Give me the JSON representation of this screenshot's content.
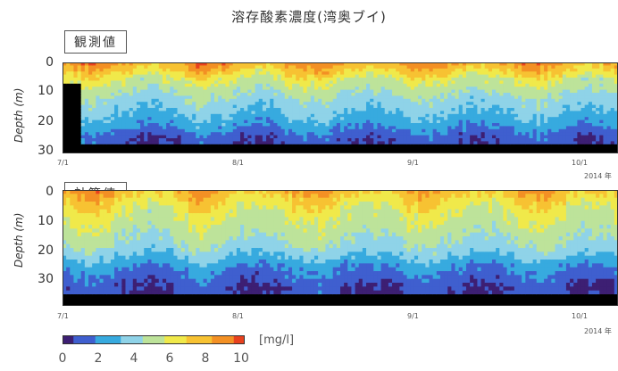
{
  "title": "溶存酸素濃度(湾奥ブイ)",
  "panels": [
    {
      "label": "観測値",
      "ylabel": "Depth (m)"
    },
    {
      "label": "計算値",
      "ylabel": "Depth (m)"
    }
  ],
  "year_label": "2014 年",
  "unit_label": "[mg/l]",
  "colorbar_ticks": [
    "0",
    "2",
    "4",
    "6",
    "8",
    "10"
  ],
  "colors": {
    "scale": [
      "#3d1f73",
      "#3f5fcf",
      "#37aadf",
      "#8fd3e8",
      "#bde39a",
      "#f0e94a",
      "#f7c232",
      "#f39024",
      "#e8411e"
    ],
    "bottom_mask": "#000000"
  },
  "chart_data": [
    {
      "type": "heatmap",
      "title": "観測値",
      "ylabel": "Depth (m)",
      "xlabel": "",
      "x_ticks": [
        "7/1",
        "8/1",
        "9/1",
        "10/1"
      ],
      "y_ticks": [
        "0",
        "10",
        "20",
        "30"
      ],
      "ylim": [
        30,
        0
      ],
      "xlim": [
        "2014-07-01",
        "2014-10-05"
      ],
      "zlim": [
        0,
        10
      ],
      "z_units": "mg/l",
      "colorbar": true,
      "approx_profile_by_depth_m": {
        "depths": [
          0,
          2,
          5,
          10,
          15,
          20,
          25
        ],
        "typical_do_mg_l": [
          8.5,
          7.5,
          6.0,
          4.5,
          3.5,
          2.5,
          1.0
        ]
      }
    },
    {
      "type": "heatmap",
      "title": "計算値",
      "ylabel": "Depth (m)",
      "xlabel": "",
      "x_ticks": [
        "7/1",
        "8/1",
        "9/1",
        "10/1"
      ],
      "y_ticks": [
        "0",
        "10",
        "20",
        "30"
      ],
      "ylim": [
        30,
        0
      ],
      "xlim": [
        "2014-07-01",
        "2014-10-05"
      ],
      "zlim": [
        0,
        10
      ],
      "z_units": "mg/l",
      "colorbar": true,
      "approx_profile_by_depth_m": {
        "depths": [
          0,
          2,
          5,
          10,
          15,
          20,
          25
        ],
        "typical_do_mg_l": [
          8.0,
          7.0,
          6.0,
          5.0,
          4.0,
          2.0,
          0.8
        ]
      }
    }
  ]
}
